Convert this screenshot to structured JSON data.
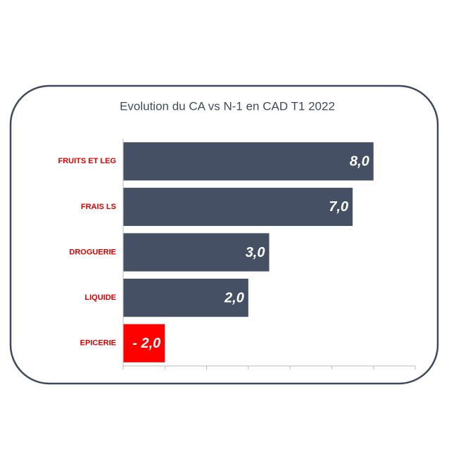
{
  "chart_data": {
    "type": "hbar",
    "title": "Evolution du CA vs N-1 en CAD T1 2022",
    "categories": [
      "FRUITS ET LEG",
      "FRAIS LS",
      "DROGUERIE",
      "LIQUIDE",
      "EPICERIE"
    ],
    "values": [
      8.0,
      7.0,
      3.0,
      2.0,
      -2.0
    ],
    "value_labels": [
      "8,0",
      "7,0",
      "3,0",
      "2,0",
      "- 2,0"
    ],
    "colors": [
      "#465064",
      "#465064",
      "#465064",
      "#465064",
      "#ff0000"
    ],
    "category_color": "#e00000",
    "xlim": [
      -4,
      10
    ],
    "xticks": [
      -4,
      -2,
      0,
      2,
      4,
      6,
      8,
      10
    ]
  }
}
